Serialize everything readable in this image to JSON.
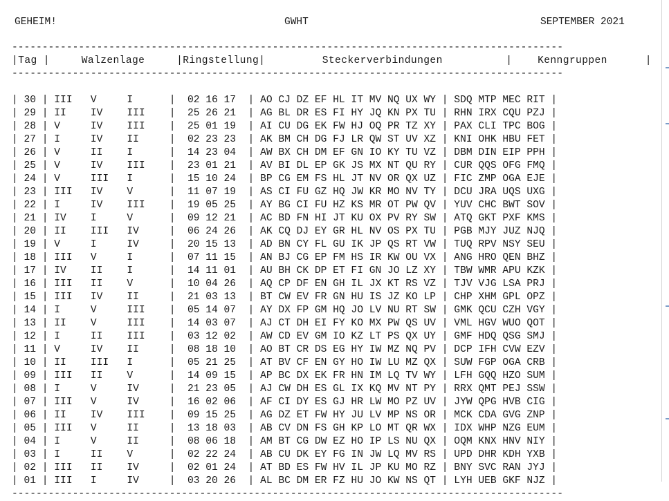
{
  "header": {
    "left": "GEHEIM!",
    "center": "GWHT",
    "right": "SEPTEMBER 2021"
  },
  "columns": [
    "Tag",
    "Walzenlage",
    "Ringstellung",
    "Steckerverbindungen",
    "Kenngruppen"
  ],
  "rows": [
    {
      "tag": "30",
      "walzen": [
        "III",
        "V",
        "I"
      ],
      "ring": [
        "02",
        "16",
        "17"
      ],
      "stecker": [
        "AO",
        "CJ",
        "DZ",
        "EF",
        "HL",
        "IT",
        "MV",
        "NQ",
        "UX",
        "WY"
      ],
      "kenn": [
        "SDQ",
        "MTP",
        "MEC",
        "RIT"
      ]
    },
    {
      "tag": "29",
      "walzen": [
        "II",
        "IV",
        "III"
      ],
      "ring": [
        "25",
        "26",
        "21"
      ],
      "stecker": [
        "AG",
        "BL",
        "DR",
        "ES",
        "FI",
        "HY",
        "JQ",
        "KN",
        "PX",
        "TU"
      ],
      "kenn": [
        "RHN",
        "IRX",
        "CQU",
        "PZJ"
      ]
    },
    {
      "tag": "28",
      "walzen": [
        "V",
        "IV",
        "III"
      ],
      "ring": [
        "25",
        "01",
        "19"
      ],
      "stecker": [
        "AI",
        "CU",
        "DG",
        "EK",
        "FW",
        "HJ",
        "OQ",
        "PR",
        "TZ",
        "XY"
      ],
      "kenn": [
        "PAX",
        "CLI",
        "TPC",
        "BOG"
      ]
    },
    {
      "tag": "27",
      "walzen": [
        "I",
        "IV",
        "II"
      ],
      "ring": [
        "02",
        "23",
        "23"
      ],
      "stecker": [
        "AK",
        "BM",
        "CH",
        "DG",
        "FJ",
        "LR",
        "QW",
        "ST",
        "UV",
        "XZ"
      ],
      "kenn": [
        "KNI",
        "OHK",
        "HBU",
        "FET"
      ]
    },
    {
      "tag": "26",
      "walzen": [
        "V",
        "II",
        "I"
      ],
      "ring": [
        "14",
        "23",
        "04"
      ],
      "stecker": [
        "AW",
        "BX",
        "CH",
        "DM",
        "EF",
        "GN",
        "IO",
        "KY",
        "TU",
        "VZ"
      ],
      "kenn": [
        "DBM",
        "DIN",
        "EIP",
        "PPH"
      ]
    },
    {
      "tag": "25",
      "walzen": [
        "V",
        "IV",
        "III"
      ],
      "ring": [
        "23",
        "01",
        "21"
      ],
      "stecker": [
        "AV",
        "BI",
        "DL",
        "EP",
        "GK",
        "JS",
        "MX",
        "NT",
        "QU",
        "RY"
      ],
      "kenn": [
        "CUR",
        "QQS",
        "OFG",
        "FMQ"
      ]
    },
    {
      "tag": "24",
      "walzen": [
        "V",
        "III",
        "I"
      ],
      "ring": [
        "15",
        "10",
        "24"
      ],
      "stecker": [
        "BP",
        "CG",
        "EM",
        "FS",
        "HL",
        "JT",
        "NV",
        "OR",
        "QX",
        "UZ"
      ],
      "kenn": [
        "FIC",
        "ZMP",
        "OGA",
        "EJE"
      ]
    },
    {
      "tag": "23",
      "walzen": [
        "III",
        "IV",
        "V"
      ],
      "ring": [
        "11",
        "07",
        "19"
      ],
      "stecker": [
        "AS",
        "CI",
        "FU",
        "GZ",
        "HQ",
        "JW",
        "KR",
        "MO",
        "NV",
        "TY"
      ],
      "kenn": [
        "DCU",
        "JRA",
        "UQS",
        "UXG"
      ]
    },
    {
      "tag": "22",
      "walzen": [
        "I",
        "IV",
        "III"
      ],
      "ring": [
        "19",
        "05",
        "25"
      ],
      "stecker": [
        "AY",
        "BG",
        "CI",
        "FU",
        "HZ",
        "KS",
        "MR",
        "OT",
        "PW",
        "QV"
      ],
      "kenn": [
        "YUV",
        "CHC",
        "BWT",
        "SOV"
      ]
    },
    {
      "tag": "21",
      "walzen": [
        "IV",
        "I",
        "V"
      ],
      "ring": [
        "09",
        "12",
        "21"
      ],
      "stecker": [
        "AC",
        "BD",
        "FN",
        "HI",
        "JT",
        "KU",
        "OX",
        "PV",
        "RY",
        "SW"
      ],
      "kenn": [
        "ATQ",
        "GKT",
        "PXF",
        "KMS"
      ]
    },
    {
      "tag": "20",
      "walzen": [
        "II",
        "III",
        "IV"
      ],
      "ring": [
        "06",
        "24",
        "26"
      ],
      "stecker": [
        "AK",
        "CQ",
        "DJ",
        "EY",
        "GR",
        "HL",
        "NV",
        "OS",
        "PX",
        "TU"
      ],
      "kenn": [
        "PGB",
        "MJY",
        "JUZ",
        "NJQ"
      ]
    },
    {
      "tag": "19",
      "walzen": [
        "V",
        "I",
        "IV"
      ],
      "ring": [
        "20",
        "15",
        "13"
      ],
      "stecker": [
        "AD",
        "BN",
        "CY",
        "FL",
        "GU",
        "IK",
        "JP",
        "QS",
        "RT",
        "VW"
      ],
      "kenn": [
        "TUQ",
        "RPV",
        "NSY",
        "SEU"
      ]
    },
    {
      "tag": "18",
      "walzen": [
        "III",
        "V",
        "I"
      ],
      "ring": [
        "07",
        "11",
        "15"
      ],
      "stecker": [
        "AN",
        "BJ",
        "CG",
        "EP",
        "FM",
        "HS",
        "IR",
        "KW",
        "OU",
        "VX"
      ],
      "kenn": [
        "ANG",
        "HRO",
        "QEN",
        "BHZ"
      ]
    },
    {
      "tag": "17",
      "walzen": [
        "IV",
        "II",
        "I"
      ],
      "ring": [
        "14",
        "11",
        "01"
      ],
      "stecker": [
        "AU",
        "BH",
        "CK",
        "DP",
        "ET",
        "FI",
        "GN",
        "JO",
        "LZ",
        "XY"
      ],
      "kenn": [
        "TBW",
        "WMR",
        "APU",
        "KZK"
      ]
    },
    {
      "tag": "16",
      "walzen": [
        "III",
        "II",
        "V"
      ],
      "ring": [
        "10",
        "04",
        "26"
      ],
      "stecker": [
        "AQ",
        "CP",
        "DF",
        "EN",
        "GH",
        "IL",
        "JX",
        "KT",
        "RS",
        "VZ"
      ],
      "kenn": [
        "TJV",
        "VJG",
        "LSA",
        "PRJ"
      ]
    },
    {
      "tag": "15",
      "walzen": [
        "III",
        "IV",
        "II"
      ],
      "ring": [
        "21",
        "03",
        "13"
      ],
      "stecker": [
        "BT",
        "CW",
        "EV",
        "FR",
        "GN",
        "HU",
        "IS",
        "JZ",
        "KO",
        "LP"
      ],
      "kenn": [
        "CHP",
        "XHM",
        "GPL",
        "OPZ"
      ]
    },
    {
      "tag": "14",
      "walzen": [
        "I",
        "V",
        "III"
      ],
      "ring": [
        "05",
        "14",
        "07"
      ],
      "stecker": [
        "AY",
        "DX",
        "FP",
        "GM",
        "HQ",
        "JO",
        "LV",
        "NU",
        "RT",
        "SW"
      ],
      "kenn": [
        "GMK",
        "QCU",
        "CZH",
        "VGY"
      ]
    },
    {
      "tag": "13",
      "walzen": [
        "II",
        "V",
        "III"
      ],
      "ring": [
        "14",
        "03",
        "07"
      ],
      "stecker": [
        "AJ",
        "CT",
        "DH",
        "EI",
        "FY",
        "KO",
        "MX",
        "PW",
        "QS",
        "UV"
      ],
      "kenn": [
        "VML",
        "HGV",
        "WUO",
        "QOT"
      ]
    },
    {
      "tag": "12",
      "walzen": [
        "I",
        "II",
        "III"
      ],
      "ring": [
        "03",
        "12",
        "02"
      ],
      "stecker": [
        "AW",
        "CD",
        "EV",
        "GM",
        "IO",
        "KZ",
        "LT",
        "PS",
        "QX",
        "UY"
      ],
      "kenn": [
        "GMF",
        "HDQ",
        "QSG",
        "SMJ"
      ]
    },
    {
      "tag": "11",
      "walzen": [
        "V",
        "IV",
        "II"
      ],
      "ring": [
        "08",
        "18",
        "10"
      ],
      "stecker": [
        "AO",
        "BT",
        "CR",
        "DS",
        "EG",
        "HY",
        "IW",
        "MZ",
        "NQ",
        "PV"
      ],
      "kenn": [
        "DCP",
        "IFH",
        "CVW",
        "EZV"
      ]
    },
    {
      "tag": "10",
      "walzen": [
        "II",
        "III",
        "I"
      ],
      "ring": [
        "05",
        "21",
        "25"
      ],
      "stecker": [
        "AT",
        "BV",
        "CF",
        "EN",
        "GY",
        "HO",
        "IW",
        "LU",
        "MZ",
        "QX"
      ],
      "kenn": [
        "SUW",
        "FGP",
        "OGA",
        "CRB"
      ]
    },
    {
      "tag": "09",
      "walzen": [
        "III",
        "II",
        "V"
      ],
      "ring": [
        "14",
        "09",
        "15"
      ],
      "stecker": [
        "AP",
        "BC",
        "DX",
        "EK",
        "FR",
        "HN",
        "IM",
        "LQ",
        "TV",
        "WY"
      ],
      "kenn": [
        "LFH",
        "GQQ",
        "HZO",
        "SUM"
      ]
    },
    {
      "tag": "08",
      "walzen": [
        "I",
        "V",
        "IV"
      ],
      "ring": [
        "21",
        "23",
        "05"
      ],
      "stecker": [
        "AJ",
        "CW",
        "DH",
        "ES",
        "GL",
        "IX",
        "KQ",
        "MV",
        "NT",
        "PY"
      ],
      "kenn": [
        "RRX",
        "QMT",
        "PEJ",
        "SSW"
      ]
    },
    {
      "tag": "07",
      "walzen": [
        "III",
        "V",
        "IV"
      ],
      "ring": [
        "16",
        "02",
        "06"
      ],
      "stecker": [
        "AF",
        "CI",
        "DY",
        "ES",
        "GJ",
        "HR",
        "LW",
        "MO",
        "PZ",
        "UV"
      ],
      "kenn": [
        "JYW",
        "QPG",
        "HVB",
        "CIG"
      ]
    },
    {
      "tag": "06",
      "walzen": [
        "II",
        "IV",
        "III"
      ],
      "ring": [
        "09",
        "15",
        "25"
      ],
      "stecker": [
        "AG",
        "DZ",
        "ET",
        "FW",
        "HY",
        "JU",
        "LV",
        "MP",
        "NS",
        "OR"
      ],
      "kenn": [
        "MCK",
        "CDA",
        "GVG",
        "ZNP"
      ]
    },
    {
      "tag": "05",
      "walzen": [
        "III",
        "V",
        "II"
      ],
      "ring": [
        "13",
        "18",
        "03"
      ],
      "stecker": [
        "AB",
        "CV",
        "DN",
        "FS",
        "GH",
        "KP",
        "LO",
        "MT",
        "QR",
        "WX"
      ],
      "kenn": [
        "IDX",
        "WHP",
        "NZG",
        "EUM"
      ]
    },
    {
      "tag": "04",
      "walzen": [
        "I",
        "V",
        "II"
      ],
      "ring": [
        "08",
        "06",
        "18"
      ],
      "stecker": [
        "AM",
        "BT",
        "CG",
        "DW",
        "EZ",
        "HO",
        "IP",
        "LS",
        "NU",
        "QX"
      ],
      "kenn": [
        "OQM",
        "KNX",
        "HNV",
        "NIY"
      ]
    },
    {
      "tag": "03",
      "walzen": [
        "I",
        "II",
        "V"
      ],
      "ring": [
        "02",
        "22",
        "24"
      ],
      "stecker": [
        "AB",
        "CU",
        "DK",
        "EY",
        "FG",
        "IN",
        "JW",
        "LQ",
        "MV",
        "RS"
      ],
      "kenn": [
        "UPD",
        "DHR",
        "KDH",
        "YXB"
      ]
    },
    {
      "tag": "02",
      "walzen": [
        "III",
        "II",
        "IV"
      ],
      "ring": [
        "02",
        "01",
        "24"
      ],
      "stecker": [
        "AT",
        "BD",
        "ES",
        "FW",
        "HV",
        "IL",
        "JP",
        "KU",
        "MO",
        "RZ"
      ],
      "kenn": [
        "BNY",
        "SVC",
        "RAN",
        "JYJ"
      ]
    },
    {
      "tag": "01",
      "walzen": [
        "III",
        "I",
        "IV"
      ],
      "ring": [
        "03",
        "20",
        "26"
      ],
      "stecker": [
        "AL",
        "BC",
        "DM",
        "ER",
        "FZ",
        "HU",
        "JO",
        "KW",
        "NS",
        "QT"
      ],
      "kenn": [
        "LYH",
        "UEB",
        "GKF",
        "NJZ"
      ]
    }
  ]
}
